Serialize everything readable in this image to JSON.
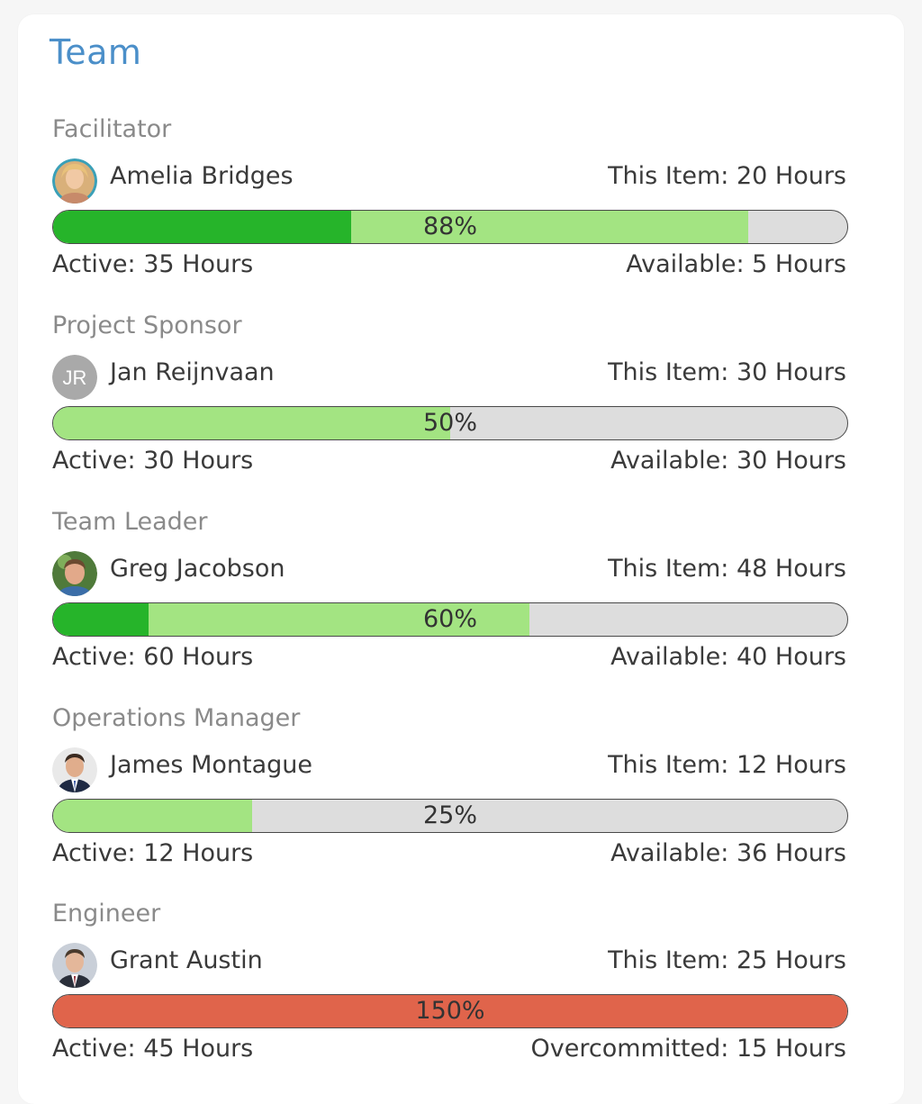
{
  "card": {
    "title": "Team"
  },
  "members": [
    {
      "role": "Facilitator",
      "name": "Amelia Bridges",
      "avatar": {
        "type": "photo",
        "icon": "avatar-photo-icon"
      },
      "this_item": "This Item: 20 Hours",
      "utilization_label": "88%",
      "active_fraction": 0.375,
      "committed_fraction": 0.875,
      "active": "Active: 35 Hours",
      "available": "Available: 5 Hours"
    },
    {
      "role": "Project Sponsor",
      "name": "Jan Reijnvaan",
      "avatar": {
        "type": "initials",
        "initials": "JR",
        "color": "#a9a9a9"
      },
      "this_item": "This Item: 30 Hours",
      "utilization_label": "50%",
      "active_fraction": 0,
      "committed_fraction": 0.5,
      "active": "Active: 30 Hours",
      "available": "Available: 30 Hours"
    },
    {
      "role": "Team Leader",
      "name": "Greg Jacobson",
      "avatar": {
        "type": "photo",
        "icon": "avatar-photo-icon"
      },
      "this_item": "This Item: 48 Hours",
      "utilization_label": "60%",
      "active_fraction": 0.12,
      "committed_fraction": 0.6,
      "active": "Active: 60 Hours",
      "available": "Available: 40 Hours"
    },
    {
      "role": "Operations Manager",
      "name": "James Montague",
      "avatar": {
        "type": "photo",
        "icon": "avatar-photo-icon"
      },
      "this_item": "This Item: 12 Hours",
      "utilization_label": "25%",
      "active_fraction": 0,
      "committed_fraction": 0.25,
      "active": "Active: 12 Hours",
      "available": "Available: 36 Hours"
    },
    {
      "role": "Engineer",
      "name": "Grant Austin",
      "avatar": {
        "type": "photo",
        "icon": "avatar-photo-icon"
      },
      "this_item": "This Item: 25 Hours",
      "utilization_label": "150%",
      "overcommitted": true,
      "active_fraction": 0,
      "committed_fraction": 1,
      "active": "Active: 45 Hours",
      "available": "Overcommitted: 15 Hours"
    }
  ],
  "colors": {
    "title": "#4b8fc9",
    "bar_track": "#dddddd",
    "bar_committed": "#a3e482",
    "bar_active": "#26b42a",
    "bar_overcommitted": "#e0644b"
  }
}
